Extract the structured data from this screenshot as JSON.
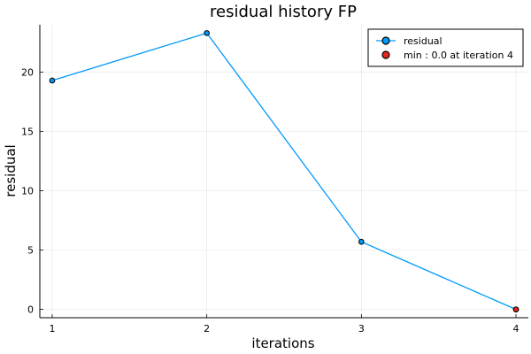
{
  "chart_data": {
    "type": "line",
    "title": "residual history FP",
    "xlabel": "iterations",
    "ylabel": "residual",
    "x": [
      1,
      2,
      3,
      4
    ],
    "series": [
      {
        "name": "residual",
        "values": [
          19.3,
          23.3,
          5.7,
          0.0
        ],
        "color": "#009AFA"
      }
    ],
    "highlight": {
      "name": "min : 0.0 at iteration 4",
      "x": 4,
      "y": 0.0,
      "color": "#E8261C"
    },
    "xlim": [
      0.92,
      4.08
    ],
    "ylim": [
      -0.7,
      24.0
    ],
    "xticks": [
      "1",
      "2",
      "3",
      "4"
    ],
    "yticks": [
      "0",
      "5",
      "10",
      "15",
      "20"
    ],
    "grid": true,
    "legend_position": "top-right"
  }
}
